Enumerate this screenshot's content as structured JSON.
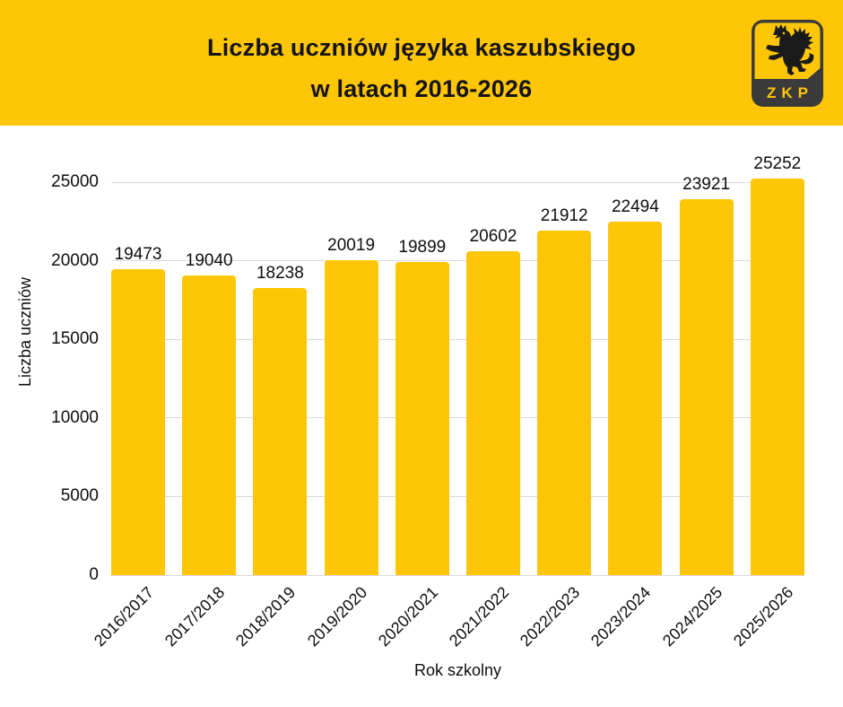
{
  "header": {
    "title_line1": "Liczba uczniów języka kaszubskiego",
    "title_line2": "w latach 2016-2026",
    "bg_color": "#FFC608",
    "logo": {
      "text": "ZKP",
      "emblem": "griffin-icon",
      "field_color": "#FFC608",
      "frame_color": "#3A3A3A",
      "emblem_color": "#1A1A1A"
    }
  },
  "chart_data": {
    "type": "bar",
    "title": "Liczba uczniów języka kaszubskiego w latach 2016-2026",
    "categories": [
      "2016/2017",
      "2017/2018",
      "2018/2019",
      "2019/2020",
      "2020/2021",
      "2021/2022",
      "2022/2023",
      "2023/2024",
      "2024/2025",
      "2025/2026"
    ],
    "values": [
      19473,
      19040,
      18238,
      20019,
      19899,
      20602,
      21912,
      22494,
      23921,
      25252
    ],
    "xlabel": "Rok szkolny",
    "ylabel": "Liczba uczniów",
    "ylim": [
      0,
      25000
    ],
    "yticks": [
      0,
      5000,
      10000,
      15000,
      20000,
      25000
    ],
    "bar_color": "#FFC608",
    "grid_color": "#DADADA",
    "grid": true,
    "legend": false,
    "data_labels_shown": true,
    "text_color": "#0E0E0E"
  }
}
